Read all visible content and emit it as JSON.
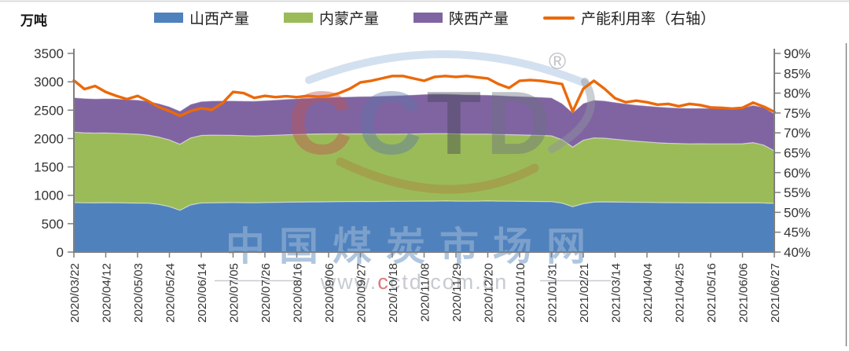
{
  "header": {
    "unit_label": "万吨"
  },
  "legend": [
    {
      "label": "山西产量",
      "color": "#4F81BD",
      "type": "swatch"
    },
    {
      "label": "内蒙产量",
      "color": "#9BBB59",
      "type": "swatch"
    },
    {
      "label": "陕西产量",
      "color": "#8064A2",
      "type": "swatch"
    },
    {
      "label": "产能利用率（右轴）",
      "color": "#EB6909",
      "type": "line"
    }
  ],
  "watermark": {
    "logo_letters": [
      "C",
      "C",
      "T",
      "D"
    ],
    "logo_letter_colors": [
      "#c0504d",
      "#5a74a8",
      "#3f434d",
      "#6a707c"
    ],
    "registered_mark": "®",
    "site_name": "中国煤炭市场网",
    "url_prefix": "www.",
    "url_highlight": "c",
    "url_suffix": "ctd.com.cn"
  },
  "axes": {
    "left_ticks": [
      "0",
      "500",
      "1000",
      "1500",
      "2000",
      "2500",
      "3000",
      "3500"
    ],
    "right_ticks": [
      "40%",
      "45%",
      "50%",
      "55%",
      "60%",
      "65%",
      "70%",
      "75%",
      "80%",
      "85%",
      "90%"
    ],
    "x_tick_labels": [
      "2020/03/22",
      "2020/04/12",
      "2020/05/03",
      "2020/05/24",
      "2020/06/14",
      "2020/07/05",
      "2020/07/26",
      "2020/08/16",
      "2020/09/06",
      "2020/09/27",
      "2020/10/18",
      "2020/11/08",
      "2020/11/29",
      "2020/12/20",
      "2021/01/10",
      "2021/01/31",
      "2021/02/21",
      "2021/03/14",
      "2021/04/04",
      "2021/04/25",
      "2021/05/16",
      "2021/06/06",
      "2021/06/27"
    ]
  },
  "chart_data": {
    "type": "area",
    "stacked": true,
    "title": "",
    "ylabel_left": "万吨",
    "ylim_left": [
      0,
      3500
    ],
    "ylim_right_percent": [
      40,
      90
    ],
    "grid": false,
    "legend_position": "top",
    "x": [
      "2020/03/22",
      "2020/03/29",
      "2020/04/05",
      "2020/04/12",
      "2020/04/19",
      "2020/04/26",
      "2020/05/03",
      "2020/05/10",
      "2020/05/17",
      "2020/05/24",
      "2020/05/31",
      "2020/06/07",
      "2020/06/14",
      "2020/06/21",
      "2020/06/28",
      "2020/07/05",
      "2020/07/12",
      "2020/07/19",
      "2020/07/26",
      "2020/08/02",
      "2020/08/09",
      "2020/08/16",
      "2020/08/23",
      "2020/08/30",
      "2020/09/06",
      "2020/09/13",
      "2020/09/20",
      "2020/09/27",
      "2020/10/04",
      "2020/10/11",
      "2020/10/18",
      "2020/10/25",
      "2020/11/01",
      "2020/11/08",
      "2020/11/15",
      "2020/11/22",
      "2020/11/29",
      "2020/12/06",
      "2020/12/13",
      "2020/12/20",
      "2020/12/27",
      "2021/01/03",
      "2021/01/10",
      "2021/01/17",
      "2021/01/24",
      "2021/01/31",
      "2021/02/07",
      "2021/02/14",
      "2021/02/21",
      "2021/02/28",
      "2021/03/07",
      "2021/03/14",
      "2021/03/21",
      "2021/03/28",
      "2021/04/04",
      "2021/04/11",
      "2021/04/18",
      "2021/04/25",
      "2021/05/02",
      "2021/05/09",
      "2021/05/16",
      "2021/05/23",
      "2021/05/30",
      "2021/06/06",
      "2021/06/13",
      "2021/06/20",
      "2021/06/27"
    ],
    "series": [
      {
        "name": "山西产量",
        "axis": "left",
        "kind": "stacked-area",
        "color": "#4F81BD",
        "values": [
          872,
          868,
          866,
          870,
          868,
          864,
          862,
          860,
          840,
          800,
          735,
          830,
          865,
          868,
          870,
          872,
          870,
          868,
          872,
          875,
          878,
          880,
          882,
          884,
          886,
          888,
          890,
          892,
          890,
          892,
          894,
          895,
          896,
          898,
          898,
          900,
          898,
          896,
          898,
          900,
          898,
          896,
          894,
          892,
          890,
          888,
          862,
          798,
          852,
          880,
          884,
          880,
          878,
          876,
          874,
          872,
          870,
          870,
          868,
          868,
          866,
          866,
          866,
          866,
          868,
          864,
          856
        ]
      },
      {
        "name": "内蒙产量",
        "axis": "left",
        "kind": "stacked-area",
        "color": "#9BBB59",
        "values": [
          1240,
          1234,
          1230,
          1228,
          1224,
          1220,
          1214,
          1200,
          1185,
          1175,
          1165,
          1180,
          1190,
          1192,
          1188,
          1184,
          1180,
          1178,
          1180,
          1184,
          1188,
          1192,
          1194,
          1196,
          1196,
          1194,
          1192,
          1190,
          1188,
          1186,
          1184,
          1184,
          1185,
          1186,
          1188,
          1186,
          1184,
          1182,
          1180,
          1178,
          1175,
          1172,
          1170,
          1168,
          1165,
          1160,
          1118,
          1052,
          1118,
          1132,
          1122,
          1108,
          1092,
          1078,
          1066,
          1054,
          1046,
          1040,
          1038,
          1040,
          1040,
          1040,
          1040,
          1042,
          1060,
          1020,
          928
        ]
      },
      {
        "name": "陕西产量",
        "axis": "left",
        "kind": "stacked-area",
        "color": "#8064A2",
        "values": [
          610,
          606,
          604,
          608,
          610,
          606,
          604,
          600,
          592,
          588,
          585,
          595,
          600,
          605,
          608,
          610,
          613,
          616,
          620,
          624,
          628,
          632,
          636,
          640,
          645,
          650,
          655,
          660,
          666,
          672,
          678,
          684,
          690,
          696,
          702,
          700,
          698,
          696,
          693,
          690,
          688,
          684,
          680,
          678,
          676,
          672,
          640,
          605,
          650,
          666,
          660,
          650,
          644,
          638,
          636,
          634,
          632,
          630,
          630,
          628,
          628,
          630,
          630,
          632,
          660,
          666,
          656
        ]
      },
      {
        "name": "产能利用率（右轴）",
        "axis": "right",
        "kind": "line",
        "color": "#EB6909",
        "values": [
          83.2,
          81.0,
          81.8,
          80.3,
          79.3,
          78.5,
          79.3,
          78.0,
          76.5,
          75.5,
          74.3,
          75.5,
          76.2,
          75.8,
          77.5,
          80.3,
          80.0,
          78.8,
          79.3,
          79.0,
          79.2,
          79.0,
          79.3,
          79.1,
          79.3,
          80.0,
          81.1,
          82.7,
          83.1,
          83.7,
          84.3,
          84.3,
          83.7,
          83.1,
          84.1,
          84.3,
          84.1,
          84.3,
          84.0,
          83.7,
          82.3,
          81.3,
          83.1,
          83.3,
          83.1,
          82.7,
          82.3,
          75.4,
          81.1,
          83.1,
          81.1,
          78.7,
          77.7,
          78.1,
          77.7,
          77.1,
          77.3,
          76.7,
          77.3,
          77.0,
          76.4,
          76.3,
          76.1,
          76.3,
          77.6,
          76.6,
          75.3
        ]
      }
    ]
  }
}
